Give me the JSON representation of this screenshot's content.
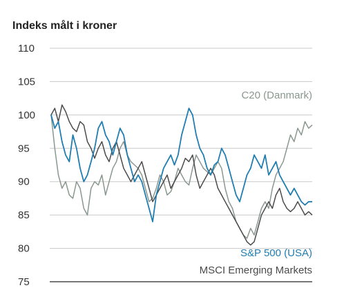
{
  "chart_data": {
    "type": "line",
    "title": "",
    "ylabel": "Indeks målt i kroner",
    "xlabel": "",
    "ylim": [
      75,
      110
    ],
    "yticks": [
      75,
      80,
      85,
      90,
      95,
      100,
      105,
      110
    ],
    "grid": true,
    "legend": "inline-right",
    "colors": {
      "c20": "#8a978f",
      "sp500": "#1f7db0",
      "msci": "#4a4a4a",
      "grid": "#c8c8c8",
      "axis": "#777777"
    },
    "series": [
      {
        "name": "C20 (Danmark)",
        "key": "c20",
        "values": [
          100.0,
          95.0,
          91.0,
          89.0,
          90.0,
          88.0,
          87.5,
          90.0,
          89.0,
          86.0,
          85.0,
          89.0,
          90.0,
          89.5,
          91.0,
          88.0,
          90.0,
          92.0,
          93.0,
          95.0,
          96.0,
          94.0,
          93.0,
          92.5,
          92.0,
          91.0,
          89.0,
          87.0,
          87.5,
          89.0,
          91.0,
          90.0,
          88.0,
          88.5,
          90.0,
          92.0,
          91.0,
          90.0,
          89.5,
          92.0,
          94.0,
          93.0,
          92.0,
          91.5,
          91.0,
          92.0,
          93.0,
          92.0,
          89.0,
          87.0,
          86.0,
          84.0,
          83.0,
          82.0,
          81.5,
          83.0,
          82.0,
          84.0,
          86.0,
          87.0,
          86.0,
          89.0,
          91.0,
          92.0,
          93.0,
          95.0,
          97.0,
          96.0,
          98.0,
          97.0,
          99.0,
          98.0,
          98.5
        ]
      },
      {
        "name": "S&P 500 (USA)",
        "key": "sp500",
        "values": [
          100.0,
          98.0,
          99.0,
          96.0,
          94.0,
          93.0,
          97.0,
          95.0,
          92.0,
          90.0,
          91.0,
          93.0,
          95.0,
          98.0,
          99.0,
          97.0,
          96.0,
          94.0,
          96.0,
          98.0,
          97.0,
          94.0,
          92.0,
          90.0,
          91.0,
          90.0,
          88.0,
          86.0,
          84.0,
          88.0,
          90.0,
          92.0,
          93.0,
          94.0,
          92.5,
          94.0,
          97.0,
          99.0,
          101.0,
          100.0,
          97.0,
          95.0,
          94.0,
          92.0,
          91.0,
          92.5,
          93.0,
          95.0,
          94.0,
          92.0,
          90.0,
          88.0,
          87.0,
          89.0,
          91.0,
          92.0,
          94.0,
          93.0,
          92.0,
          94.0,
          91.0,
          92.0,
          93.0,
          91.0,
          90.0,
          89.0,
          88.0,
          89.0,
          88.0,
          87.0,
          86.5,
          87.0,
          87.0
        ]
      },
      {
        "name": "MSCI Emerging Markets",
        "key": "msci",
        "values": [
          100.0,
          101.0,
          99.0,
          101.5,
          100.5,
          99.0,
          98.0,
          97.5,
          99.0,
          98.5,
          96.0,
          95.0,
          93.5,
          95.0,
          96.0,
          94.0,
          93.0,
          95.0,
          96.0,
          94.0,
          92.0,
          91.0,
          90.0,
          91.0,
          92.0,
          93.0,
          91.0,
          89.0,
          87.0,
          88.0,
          89.0,
          90.0,
          91.0,
          89.0,
          90.0,
          91.0,
          92.0,
          93.5,
          93.0,
          94.0,
          91.0,
          89.0,
          90.0,
          91.0,
          92.0,
          91.0,
          89.0,
          88.0,
          87.0,
          86.0,
          85.0,
          84.0,
          83.0,
          82.0,
          81.0,
          80.5,
          81.0,
          83.0,
          85.0,
          86.0,
          87.0,
          86.0,
          88.0,
          89.0,
          87.0,
          86.0,
          85.5,
          86.0,
          87.0,
          86.0,
          85.0,
          85.5,
          85.0
        ]
      }
    ]
  }
}
